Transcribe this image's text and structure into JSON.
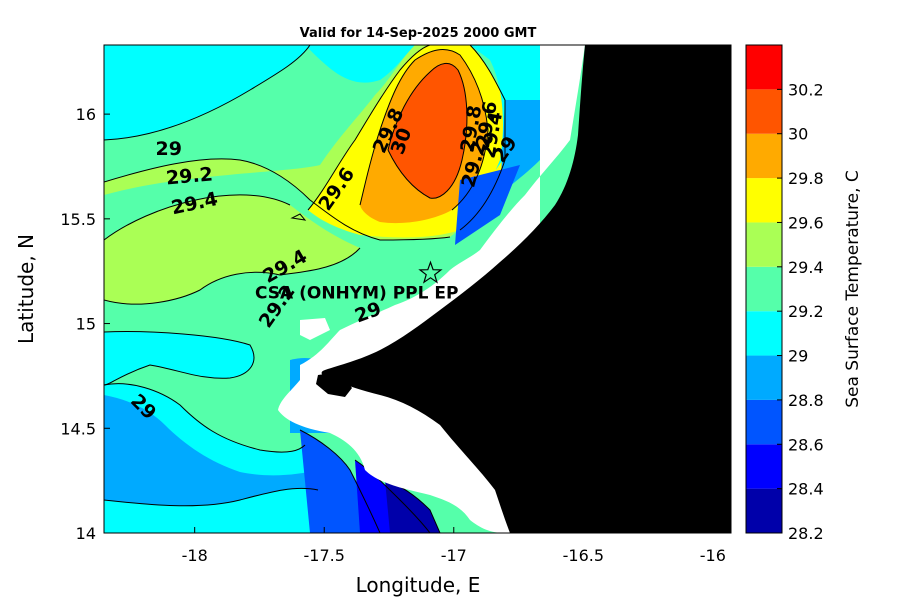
{
  "title": "Valid for 14-Sep-2025 2000 GMT",
  "map": {
    "xlabel": "Longitude, E",
    "ylabel": "Latitude, N",
    "xlim": [
      -18.35,
      -15.93
    ],
    "ylim": [
      14.0,
      16.33
    ],
    "xticks": [
      {
        "value": -18,
        "label": "-18"
      },
      {
        "value": -17.5,
        "label": "-17.5"
      },
      {
        "value": -17,
        "label": "-17"
      },
      {
        "value": -16.5,
        "label": "-16.5"
      },
      {
        "value": -16,
        "label": "-16"
      }
    ],
    "yticks": [
      {
        "value": 14,
        "label": "14"
      },
      {
        "value": 14.5,
        "label": "14.5"
      },
      {
        "value": 15,
        "label": "15"
      },
      {
        "value": 15.5,
        "label": "15.5"
      },
      {
        "value": 16,
        "label": "16"
      }
    ],
    "land_color": "#000000",
    "mask_color": "#ffffff"
  },
  "colorbar": {
    "label": "Sea Surface Temperature, C",
    "levels": [
      28.2,
      28.4,
      28.6,
      28.8,
      29.0,
      29.2,
      29.4,
      29.6,
      29.8,
      30.0,
      30.2,
      30.4
    ],
    "colors": [
      "#0000aa",
      "#0000ff",
      "#0055ff",
      "#00aaff",
      "#00ffff",
      "#55ffaa",
      "#aaff55",
      "#ffff00",
      "#ffaa00",
      "#ff5500",
      "#ff0000"
    ],
    "tick_labels": [
      "28.2",
      "28.4",
      "28.6",
      "28.8",
      "29",
      "29.2",
      "29.4",
      "29.6",
      "29.8",
      "30",
      "30.2"
    ]
  },
  "contour_labels": [
    {
      "text": "29",
      "lon": -18.1,
      "lat": 15.83,
      "angle": 0
    },
    {
      "text": "29.2",
      "lon": -18.02,
      "lat": 15.7,
      "angle": -5
    },
    {
      "text": "29.4",
      "lon": -18.0,
      "lat": 15.57,
      "angle": -12
    },
    {
      "text": "29.6",
      "lon": -17.45,
      "lat": 15.64,
      "angle": -55
    },
    {
      "text": "29.8",
      "lon": -17.25,
      "lat": 15.92,
      "angle": -65
    },
    {
      "text": "30",
      "lon": -17.2,
      "lat": 15.87,
      "angle": -70
    },
    {
      "text": "29.8",
      "lon": -16.93,
      "lat": 15.93,
      "angle": -80
    },
    {
      "text": "29.6",
      "lon": -16.87,
      "lat": 15.95,
      "angle": -80
    },
    {
      "text": "29.4",
      "lon": -16.85,
      "lat": 15.9,
      "angle": -80
    },
    {
      "text": "29.2",
      "lon": -16.92,
      "lat": 15.76,
      "angle": -75
    },
    {
      "text": "29",
      "lon": -16.8,
      "lat": 15.83,
      "angle": -55
    },
    {
      "text": "29.4",
      "lon": -17.65,
      "lat": 15.27,
      "angle": -30
    },
    {
      "text": "29.2",
      "lon": -17.68,
      "lat": 15.08,
      "angle": -55
    },
    {
      "text": "29",
      "lon": -17.33,
      "lat": 15.05,
      "angle": -20
    },
    {
      "text": "29",
      "lon": -18.2,
      "lat": 14.6,
      "angle": 45
    }
  ],
  "site": {
    "label": "CSA (ONHYM) PPL EP",
    "lon": -17.09,
    "lat": 15.24
  }
}
